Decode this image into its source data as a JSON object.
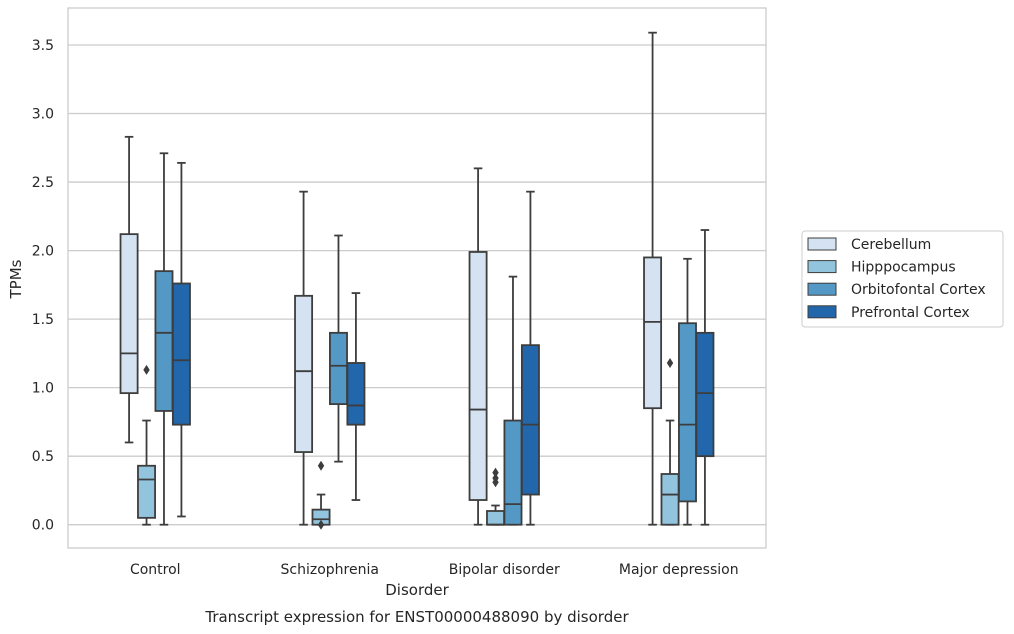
{
  "chart_data": {
    "type": "box",
    "xlabel": "Disorder",
    "ylabel": "TPMs",
    "caption": "Transcript expression for ENST00000488090 by disorder",
    "categories": [
      "Control",
      "Schizophrenia",
      "Bipolar disorder",
      "Major depression"
    ],
    "ylim": [
      -0.17,
      3.77
    ],
    "yticks": [
      "0.0",
      "0.5",
      "1.0",
      "1.5",
      "2.0",
      "2.5",
      "3.0",
      "3.5"
    ],
    "grid": true,
    "legend_position": "right",
    "series": [
      {
        "name": "Cerebellum",
        "color": "#d4e2f1",
        "boxes": [
          {
            "whislo": 0.6,
            "q1": 0.96,
            "med": 1.25,
            "q3": 2.12,
            "whishi": 2.83,
            "fliers": []
          },
          {
            "whislo": 0.0,
            "q1": 0.53,
            "med": 1.12,
            "q3": 1.67,
            "whishi": 2.43,
            "fliers": []
          },
          {
            "whislo": 0.0,
            "q1": 0.18,
            "med": 0.84,
            "q3": 1.99,
            "whishi": 2.6,
            "fliers": []
          },
          {
            "whislo": 0.0,
            "q1": 0.85,
            "med": 1.48,
            "q3": 1.95,
            "whishi": 3.59,
            "fliers": []
          }
        ]
      },
      {
        "name": "Hipppocampus",
        "color": "#93c4de",
        "boxes": [
          {
            "whislo": 0.0,
            "q1": 0.05,
            "med": 0.33,
            "q3": 0.43,
            "whishi": 0.76,
            "fliers": [
              1.13
            ]
          },
          {
            "whislo": 0.0,
            "q1": 0.0,
            "med": 0.04,
            "q3": 0.11,
            "whishi": 0.22,
            "fliers": [
              0.43,
              0.0
            ]
          },
          {
            "whislo": 0.0,
            "q1": 0.0,
            "med": 0.0,
            "q3": 0.1,
            "whishi": 0.14,
            "fliers": [
              0.38,
              0.34,
              0.31
            ]
          },
          {
            "whislo": 0.0,
            "q1": 0.0,
            "med": 0.22,
            "q3": 0.37,
            "whishi": 0.76,
            "fliers": [
              1.18
            ]
          }
        ]
      },
      {
        "name": "Orbitofontal Cortex",
        "color": "#5499c6",
        "boxes": [
          {
            "whislo": 0.0,
            "q1": 0.83,
            "med": 1.4,
            "q3": 1.85,
            "whishi": 2.71,
            "fliers": []
          },
          {
            "whislo": 0.46,
            "q1": 0.88,
            "med": 1.16,
            "q3": 1.4,
            "whishi": 2.11,
            "fliers": []
          },
          {
            "whislo": 0.0,
            "q1": 0.0,
            "med": 0.15,
            "q3": 0.76,
            "whishi": 1.81,
            "fliers": []
          },
          {
            "whislo": 0.0,
            "q1": 0.17,
            "med": 0.73,
            "q3": 1.47,
            "whishi": 1.94,
            "fliers": []
          }
        ]
      },
      {
        "name": "Prefrontal Cortex",
        "color": "#2266ab",
        "boxes": [
          {
            "whislo": 0.06,
            "q1": 0.73,
            "med": 1.2,
            "q3": 1.76,
            "whishi": 2.64,
            "fliers": []
          },
          {
            "whislo": 0.18,
            "q1": 0.73,
            "med": 0.87,
            "q3": 1.18,
            "whishi": 1.69,
            "fliers": []
          },
          {
            "whislo": 0.0,
            "q1": 0.22,
            "med": 0.73,
            "q3": 1.31,
            "whishi": 2.43,
            "fliers": []
          },
          {
            "whislo": 0.0,
            "q1": 0.5,
            "med": 0.96,
            "q3": 1.4,
            "whishi": 2.15,
            "fliers": []
          }
        ]
      }
    ]
  }
}
